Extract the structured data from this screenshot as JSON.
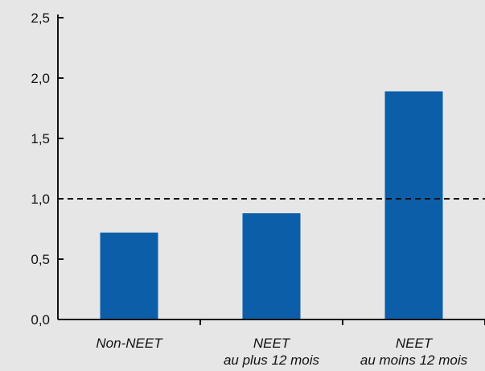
{
  "chart_data": {
    "type": "bar",
    "categories": [
      [
        "Non-NEET"
      ],
      [
        "NEET",
        "au plus 12 mois"
      ],
      [
        "NEET",
        "au moins 12 mois"
      ]
    ],
    "values": [
      0.72,
      0.88,
      1.89
    ],
    "ylim": [
      0,
      2.5
    ],
    "y_ticks": [
      "0,0",
      "0,5",
      "1,0",
      "1,5",
      "2,0",
      "2,5"
    ],
    "y_tick_values": [
      0,
      0.5,
      1.0,
      1.5,
      2.0,
      2.5
    ],
    "reference_line": {
      "value": 1.0,
      "style": "dashed"
    },
    "grid": false,
    "title": "",
    "xlabel": "",
    "ylabel": "",
    "colors": {
      "bar": "#0d5ea8",
      "background": "#e6e6e7",
      "axis": "#111111",
      "reference_line": "#111111"
    }
  }
}
